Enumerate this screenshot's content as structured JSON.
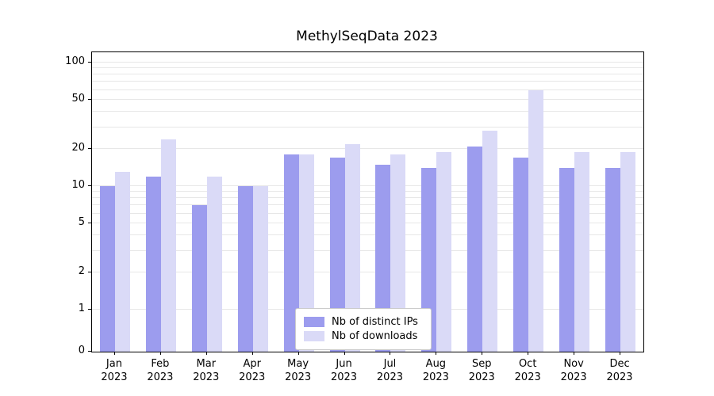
{
  "title": "MethylSeqData 2023",
  "chart_data": {
    "type": "bar",
    "scale": "symlog",
    "title": "MethylSeqData 2023",
    "xlabel": "",
    "ylabel": "",
    "categories": [
      "Jan",
      "Feb",
      "Mar",
      "Apr",
      "May",
      "Jun",
      "Jul",
      "Aug",
      "Sep",
      "Oct",
      "Nov",
      "Dec"
    ],
    "year_label": "2023",
    "series": [
      {
        "name": "Nb of distinct IPs",
        "color": "#9c9cee",
        "values": [
          10,
          12,
          7,
          10,
          18,
          17,
          15,
          14,
          21,
          17,
          14,
          14
        ]
      },
      {
        "name": "Nb of downloads",
        "color": "#dadaf7",
        "values": [
          13,
          24,
          12,
          10,
          18,
          22,
          18,
          19,
          28,
          60,
          19,
          19
        ]
      }
    ],
    "yticks": [
      0,
      1,
      2,
      5,
      10,
      20,
      50,
      100
    ],
    "minor_gridlines": [
      1,
      2,
      3,
      4,
      5,
      6,
      7,
      8,
      9,
      10,
      20,
      30,
      40,
      50,
      60,
      70,
      80,
      90,
      100
    ],
    "ylim": [
      0,
      120
    ],
    "grid": "on",
    "legend_position": "lower center"
  }
}
